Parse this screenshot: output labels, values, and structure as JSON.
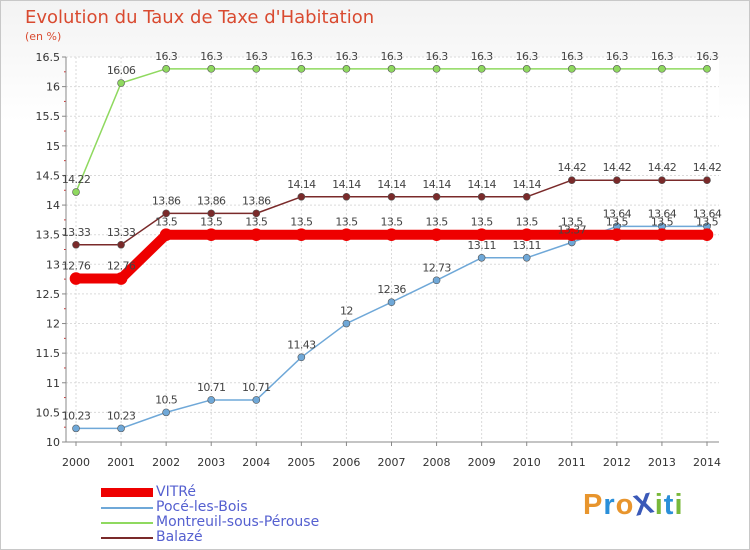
{
  "title": "Evolution du Taux de Taxe d'Habitation",
  "subtitle": "(en %)",
  "logo_text": "ProXiti",
  "chart_data": {
    "type": "line",
    "x": [
      "2000",
      "2001",
      "2002",
      "2003",
      "2004",
      "2005",
      "2006",
      "2007",
      "2008",
      "2009",
      "2010",
      "2011",
      "2012",
      "2013",
      "2014"
    ],
    "ylim": [
      10,
      16.5
    ],
    "yticks": [
      "10",
      "10.5",
      "11",
      "11.5",
      "12",
      "12.5",
      "13",
      "13.5",
      "14",
      "14.5",
      "15",
      "15.5",
      "16",
      "16.5"
    ],
    "grid": true,
    "legend_position": "bottom-left",
    "series": [
      {
        "name": "VITRé",
        "color": "#ee0000",
        "values": [
          12.76,
          12.76,
          13.5,
          13.5,
          13.5,
          13.5,
          13.5,
          13.5,
          13.5,
          13.5,
          13.5,
          13.5,
          13.5,
          13.5,
          13.5
        ],
        "labels": [
          "12.76",
          "12.76",
          "13.5",
          "13.5",
          "13.5",
          "13.5",
          "13.5",
          "13.5",
          "13.5",
          "13.5",
          "13.5",
          "13.5",
          "13.5",
          "13.5",
          "13.5"
        ]
      },
      {
        "name": "Pocé-les-Bois",
        "color": "#6fa8d8",
        "values": [
          10.23,
          10.23,
          10.5,
          10.71,
          10.71,
          11.43,
          12,
          12.36,
          12.73,
          13.11,
          13.11,
          13.37,
          13.64,
          13.64,
          13.64
        ],
        "labels": [
          "10.23",
          "10.23",
          "10.5",
          "10.71",
          "10.71",
          "11.43",
          "12",
          "12.36",
          "12.73",
          "13.11",
          "13.11",
          "13.37",
          "13.64",
          "13.64",
          "13.64"
        ]
      },
      {
        "name": "Montreuil-sous-Pérouse",
        "color": "#8fd95f",
        "values": [
          14.22,
          16.06,
          16.3,
          16.3,
          16.3,
          16.3,
          16.3,
          16.3,
          16.3,
          16.3,
          16.3,
          16.3,
          16.3,
          16.3,
          16.3
        ],
        "labels": [
          "14.22",
          "16.06",
          "16.3",
          "16.3",
          "16.3",
          "16.3",
          "16.3",
          "16.3",
          "16.3",
          "16.3",
          "16.3",
          "16.3",
          "16.3",
          "16.3",
          "16.3"
        ]
      },
      {
        "name": "Balazé",
        "color": "#7a2a2a",
        "values": [
          13.33,
          13.33,
          13.86,
          13.86,
          13.86,
          14.14,
          14.14,
          14.14,
          14.14,
          14.14,
          14.14,
          14.42,
          14.42,
          14.42,
          14.42
        ],
        "labels": [
          "13.33",
          "13.33",
          "13.86",
          "13.86",
          "13.86",
          "14.14",
          "14.14",
          "14.14",
          "14.14",
          "14.14",
          "14.14",
          "14.42",
          "14.42",
          "14.42",
          "14.42"
        ]
      }
    ]
  }
}
